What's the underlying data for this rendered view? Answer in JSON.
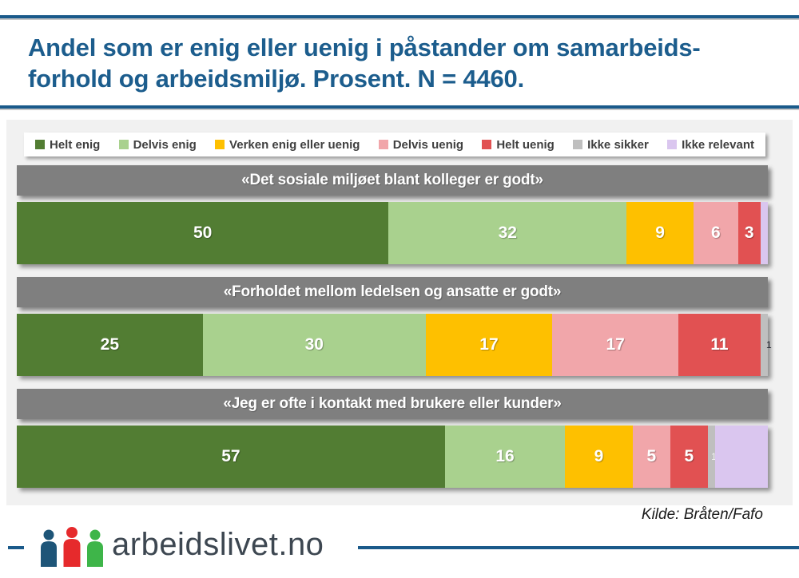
{
  "page": {
    "title_line1": "Andel som er enig eller uenig i påstander om samarbeids-",
    "title_line2": "forhold og arbeidsmiljø. Prosent. N = 4460.",
    "source": "Kilde: Bråten/Fafo",
    "logo_text": "arbeidslivet.no"
  },
  "colors": {
    "accent_blue": "#1a5a8a",
    "title_blue": "#1c5d8d",
    "plot_background": "#f1f1f1",
    "header_band": "#7f7f7f",
    "legend_text": "#404040",
    "logo_person_blue": "#1e5578",
    "logo_person_red": "#e62a2c",
    "logo_person_green": "#3eb549",
    "logo_text_color": "#3d4751"
  },
  "chart_data": {
    "type": "bar",
    "variant": "horizontal-stacked",
    "title": "Andel som er enig eller uenig i påstander om samarbeidsforhold og arbeidsmiljø. Prosent. N = 4460.",
    "unit": "percent",
    "n": 4460,
    "legend_position": "top",
    "xlim": [
      0,
      100
    ],
    "categories": [
      "«Det sosiale miljøet blant kolleger er godt»",
      "«Forholdet mellom ledelsen og ansatte er godt»",
      "«Jeg er ofte i kontakt med brukere eller kunder»"
    ],
    "series": [
      {
        "name": "Helt enig",
        "color": "#527d33",
        "values": [
          50,
          25,
          57
        ]
      },
      {
        "name": "Delvis enig",
        "color": "#a9d18e",
        "values": [
          32,
          30,
          16
        ]
      },
      {
        "name": "Verken enig eller uenig",
        "color": "#fec000",
        "values": [
          9,
          17,
          9
        ]
      },
      {
        "name": "Delvis uenig",
        "color": "#f1a6aa",
        "values": [
          6,
          17,
          5
        ]
      },
      {
        "name": "Helt uenig",
        "color": "#e15152",
        "values": [
          3,
          11,
          5
        ]
      },
      {
        "name": "Ikke sikker",
        "color": "#bfbfbf",
        "values": [
          0,
          1,
          1
        ]
      },
      {
        "name": "Ikke relevant",
        "color": "#dac6ef",
        "values": [
          1,
          0,
          7
        ]
      }
    ]
  },
  "rows": [
    {
      "header": "«Det sosiale miljøet blant kolleger er godt»",
      "segments": [
        {
          "series": "Helt enig",
          "value": 50,
          "label": "50",
          "style": "big"
        },
        {
          "series": "Delvis enig",
          "value": 32,
          "label": "32",
          "style": "big"
        },
        {
          "series": "Verken enig eller uenig",
          "value": 9,
          "label": "9",
          "style": "big"
        },
        {
          "series": "Delvis uenig",
          "value": 6,
          "label": "6",
          "style": "big"
        },
        {
          "series": "Helt uenig",
          "value": 3,
          "label": "3",
          "style": "big"
        },
        {
          "series": "Ikke relevant",
          "value": 1,
          "label": "",
          "style": "big"
        }
      ]
    },
    {
      "header": "«Forholdet mellom ledelsen og ansatte er godt»",
      "segments": [
        {
          "series": "Helt enig",
          "value": 25,
          "label": "25",
          "style": "big"
        },
        {
          "series": "Delvis enig",
          "value": 30,
          "label": "30",
          "style": "big"
        },
        {
          "series": "Verken enig eller uenig",
          "value": 17,
          "label": "17",
          "style": "big"
        },
        {
          "series": "Delvis uenig",
          "value": 17,
          "label": "17",
          "style": "big"
        },
        {
          "series": "Helt uenig",
          "value": 11,
          "label": "11",
          "style": "big"
        },
        {
          "series": "Ikke sikker",
          "value": 1,
          "label": "1",
          "style": "small-dark"
        }
      ]
    },
    {
      "header": "«Jeg er ofte i kontakt med brukere eller kunder»",
      "segments": [
        {
          "series": "Helt enig",
          "value": 57,
          "label": "57",
          "style": "big"
        },
        {
          "series": "Delvis enig",
          "value": 16,
          "label": "16",
          "style": "big"
        },
        {
          "series": "Verken enig eller uenig",
          "value": 9,
          "label": "9",
          "style": "big"
        },
        {
          "series": "Delvis uenig",
          "value": 5,
          "label": "5",
          "style": "big"
        },
        {
          "series": "Helt uenig",
          "value": 5,
          "label": "5",
          "style": "big"
        },
        {
          "series": "Ikke sikker",
          "value": 1,
          "label": "1",
          "style": "small-light"
        },
        {
          "series": "Ikke relevant",
          "value": 7,
          "label": "",
          "style": "big"
        }
      ]
    }
  ]
}
